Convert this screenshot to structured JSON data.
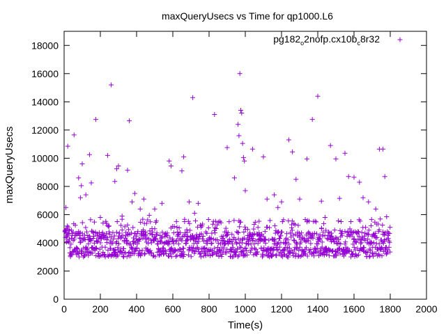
{
  "chart_data": {
    "type": "scatter",
    "title": "maxQueryUsecs vs Time for qp1000.L6",
    "xlabel": "Time(s)",
    "ylabel": "maxQueryUsecs",
    "xlim": [
      0,
      2000
    ],
    "ylim": [
      0,
      19000
    ],
    "xticks": [
      0,
      200,
      400,
      600,
      800,
      1000,
      1200,
      1400,
      1600,
      1800,
      2000
    ],
    "yticks": [
      0,
      2000,
      4000,
      6000,
      8000,
      10000,
      12000,
      14000,
      16000,
      18000
    ],
    "xtick_labels": [
      "0",
      "200",
      "400",
      "600",
      "800",
      "1000",
      "1200",
      "1400",
      "1600",
      "1800",
      "2000"
    ],
    "ytick_labels": [
      "0",
      "2000",
      "4000",
      "6000",
      "8000",
      "10000",
      "12000",
      "14000",
      "16000",
      "18000"
    ],
    "grid": false,
    "legend_placement": "top-right",
    "marker": "plus",
    "series": [
      {
        "name_parts": {
          "a": "pg182",
          "sub1": "o",
          "b": "2nofp.cx10b",
          "sub2": "c",
          "c": "8r32"
        },
        "color": "#9400d3",
        "sample_outliers": [
          [
            10,
            6500
          ],
          [
            20,
            10850
          ],
          [
            40,
            4900
          ],
          [
            55,
            11650
          ],
          [
            80,
            8600
          ],
          [
            90,
            7200
          ],
          [
            95,
            8050
          ],
          [
            100,
            9600
          ],
          [
            120,
            7400
          ],
          [
            140,
            10250
          ],
          [
            150,
            8250
          ],
          [
            175,
            12750
          ],
          [
            200,
            5800
          ],
          [
            240,
            10200
          ],
          [
            260,
            15200
          ],
          [
            280,
            8350
          ],
          [
            290,
            9250
          ],
          [
            300,
            9450
          ],
          [
            320,
            5900
          ],
          [
            350,
            9150
          ],
          [
            360,
            12650
          ],
          [
            375,
            6900
          ],
          [
            390,
            7500
          ],
          [
            420,
            6400
          ],
          [
            440,
            7100
          ],
          [
            470,
            5950
          ],
          [
            500,
            6400
          ],
          [
            540,
            6800
          ],
          [
            580,
            9800
          ],
          [
            590,
            9450
          ],
          [
            650,
            9100
          ],
          [
            660,
            10100
          ],
          [
            690,
            6900
          ],
          [
            710,
            14300
          ],
          [
            720,
            6100
          ],
          [
            740,
            6800
          ],
          [
            830,
            13100
          ],
          [
            900,
            10750
          ],
          [
            940,
            8600
          ],
          [
            960,
            12400
          ],
          [
            965,
            11600
          ],
          [
            970,
            16000
          ],
          [
            975,
            13400
          ],
          [
            980,
            13200
          ],
          [
            985,
            11050
          ],
          [
            990,
            10050
          ],
          [
            995,
            9800
          ],
          [
            1000,
            7700
          ],
          [
            1040,
            10650
          ],
          [
            1100,
            10100
          ],
          [
            1120,
            7100
          ],
          [
            1160,
            7400
          ],
          [
            1180,
            6500
          ],
          [
            1200,
            6900
          ],
          [
            1240,
            11300
          ],
          [
            1260,
            10450
          ],
          [
            1280,
            8500
          ],
          [
            1300,
            7100
          ],
          [
            1340,
            9950
          ],
          [
            1370,
            12750
          ],
          [
            1400,
            14400
          ],
          [
            1420,
            6950
          ],
          [
            1440,
            5800
          ],
          [
            1470,
            10900
          ],
          [
            1500,
            9950
          ],
          [
            1520,
            7150
          ],
          [
            1550,
            10350
          ],
          [
            1570,
            8700
          ],
          [
            1600,
            8650
          ],
          [
            1630,
            8300
          ],
          [
            1650,
            7200
          ],
          [
            1680,
            6900
          ],
          [
            1720,
            6400
          ],
          [
            1740,
            10650
          ],
          [
            1760,
            10650
          ],
          [
            1770,
            8700
          ],
          [
            1780,
            5850
          ]
        ],
        "band_hint": "Dense bands of points between roughly 2900 and 5000 across the full time range 0-1800"
      }
    ]
  }
}
